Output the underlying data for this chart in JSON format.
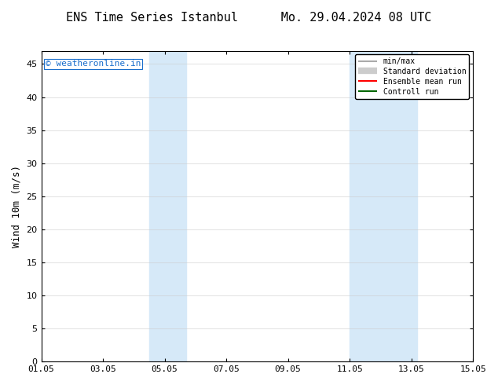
{
  "title": "ENS Time Series Istanbul      Mo. 29.04.2024 08 UTC",
  "ylabel": "Wind 10m (m/s)",
  "ylim": [
    0,
    47
  ],
  "yticks": [
    0,
    5,
    10,
    15,
    20,
    25,
    30,
    35,
    40,
    45
  ],
  "xtick_labels": [
    "01.05",
    "03.05",
    "05.05",
    "07.05",
    "09.05",
    "11.05",
    "13.05",
    "15.05"
  ],
  "xtick_positions": [
    1,
    3,
    5,
    7,
    9,
    11,
    13,
    15
  ],
  "xlim": [
    1,
    15
  ],
  "shaded_bands": [
    {
      "x_start": 4.5,
      "x_end": 5.7
    },
    {
      "x_start": 11.0,
      "x_end": 13.2
    }
  ],
  "shaded_color": "#d6e9f8",
  "background_color": "#ffffff",
  "watermark_text": "© weatheronline.in",
  "watermark_color": "#1a6ecc",
  "legend_entries": [
    {
      "label": "min/max",
      "color": "#aaaaaa",
      "lw": 1.5
    },
    {
      "label": "Standard deviation",
      "color": "#cccccc",
      "lw": 6
    },
    {
      "label": "Ensemble mean run",
      "color": "#ff0000",
      "lw": 1.5
    },
    {
      "label": "Controll run",
      "color": "#006600",
      "lw": 1.5
    }
  ],
  "title_fontsize": 11,
  "tick_fontsize": 8,
  "ylabel_fontsize": 9,
  "watermark_fontsize": 8
}
